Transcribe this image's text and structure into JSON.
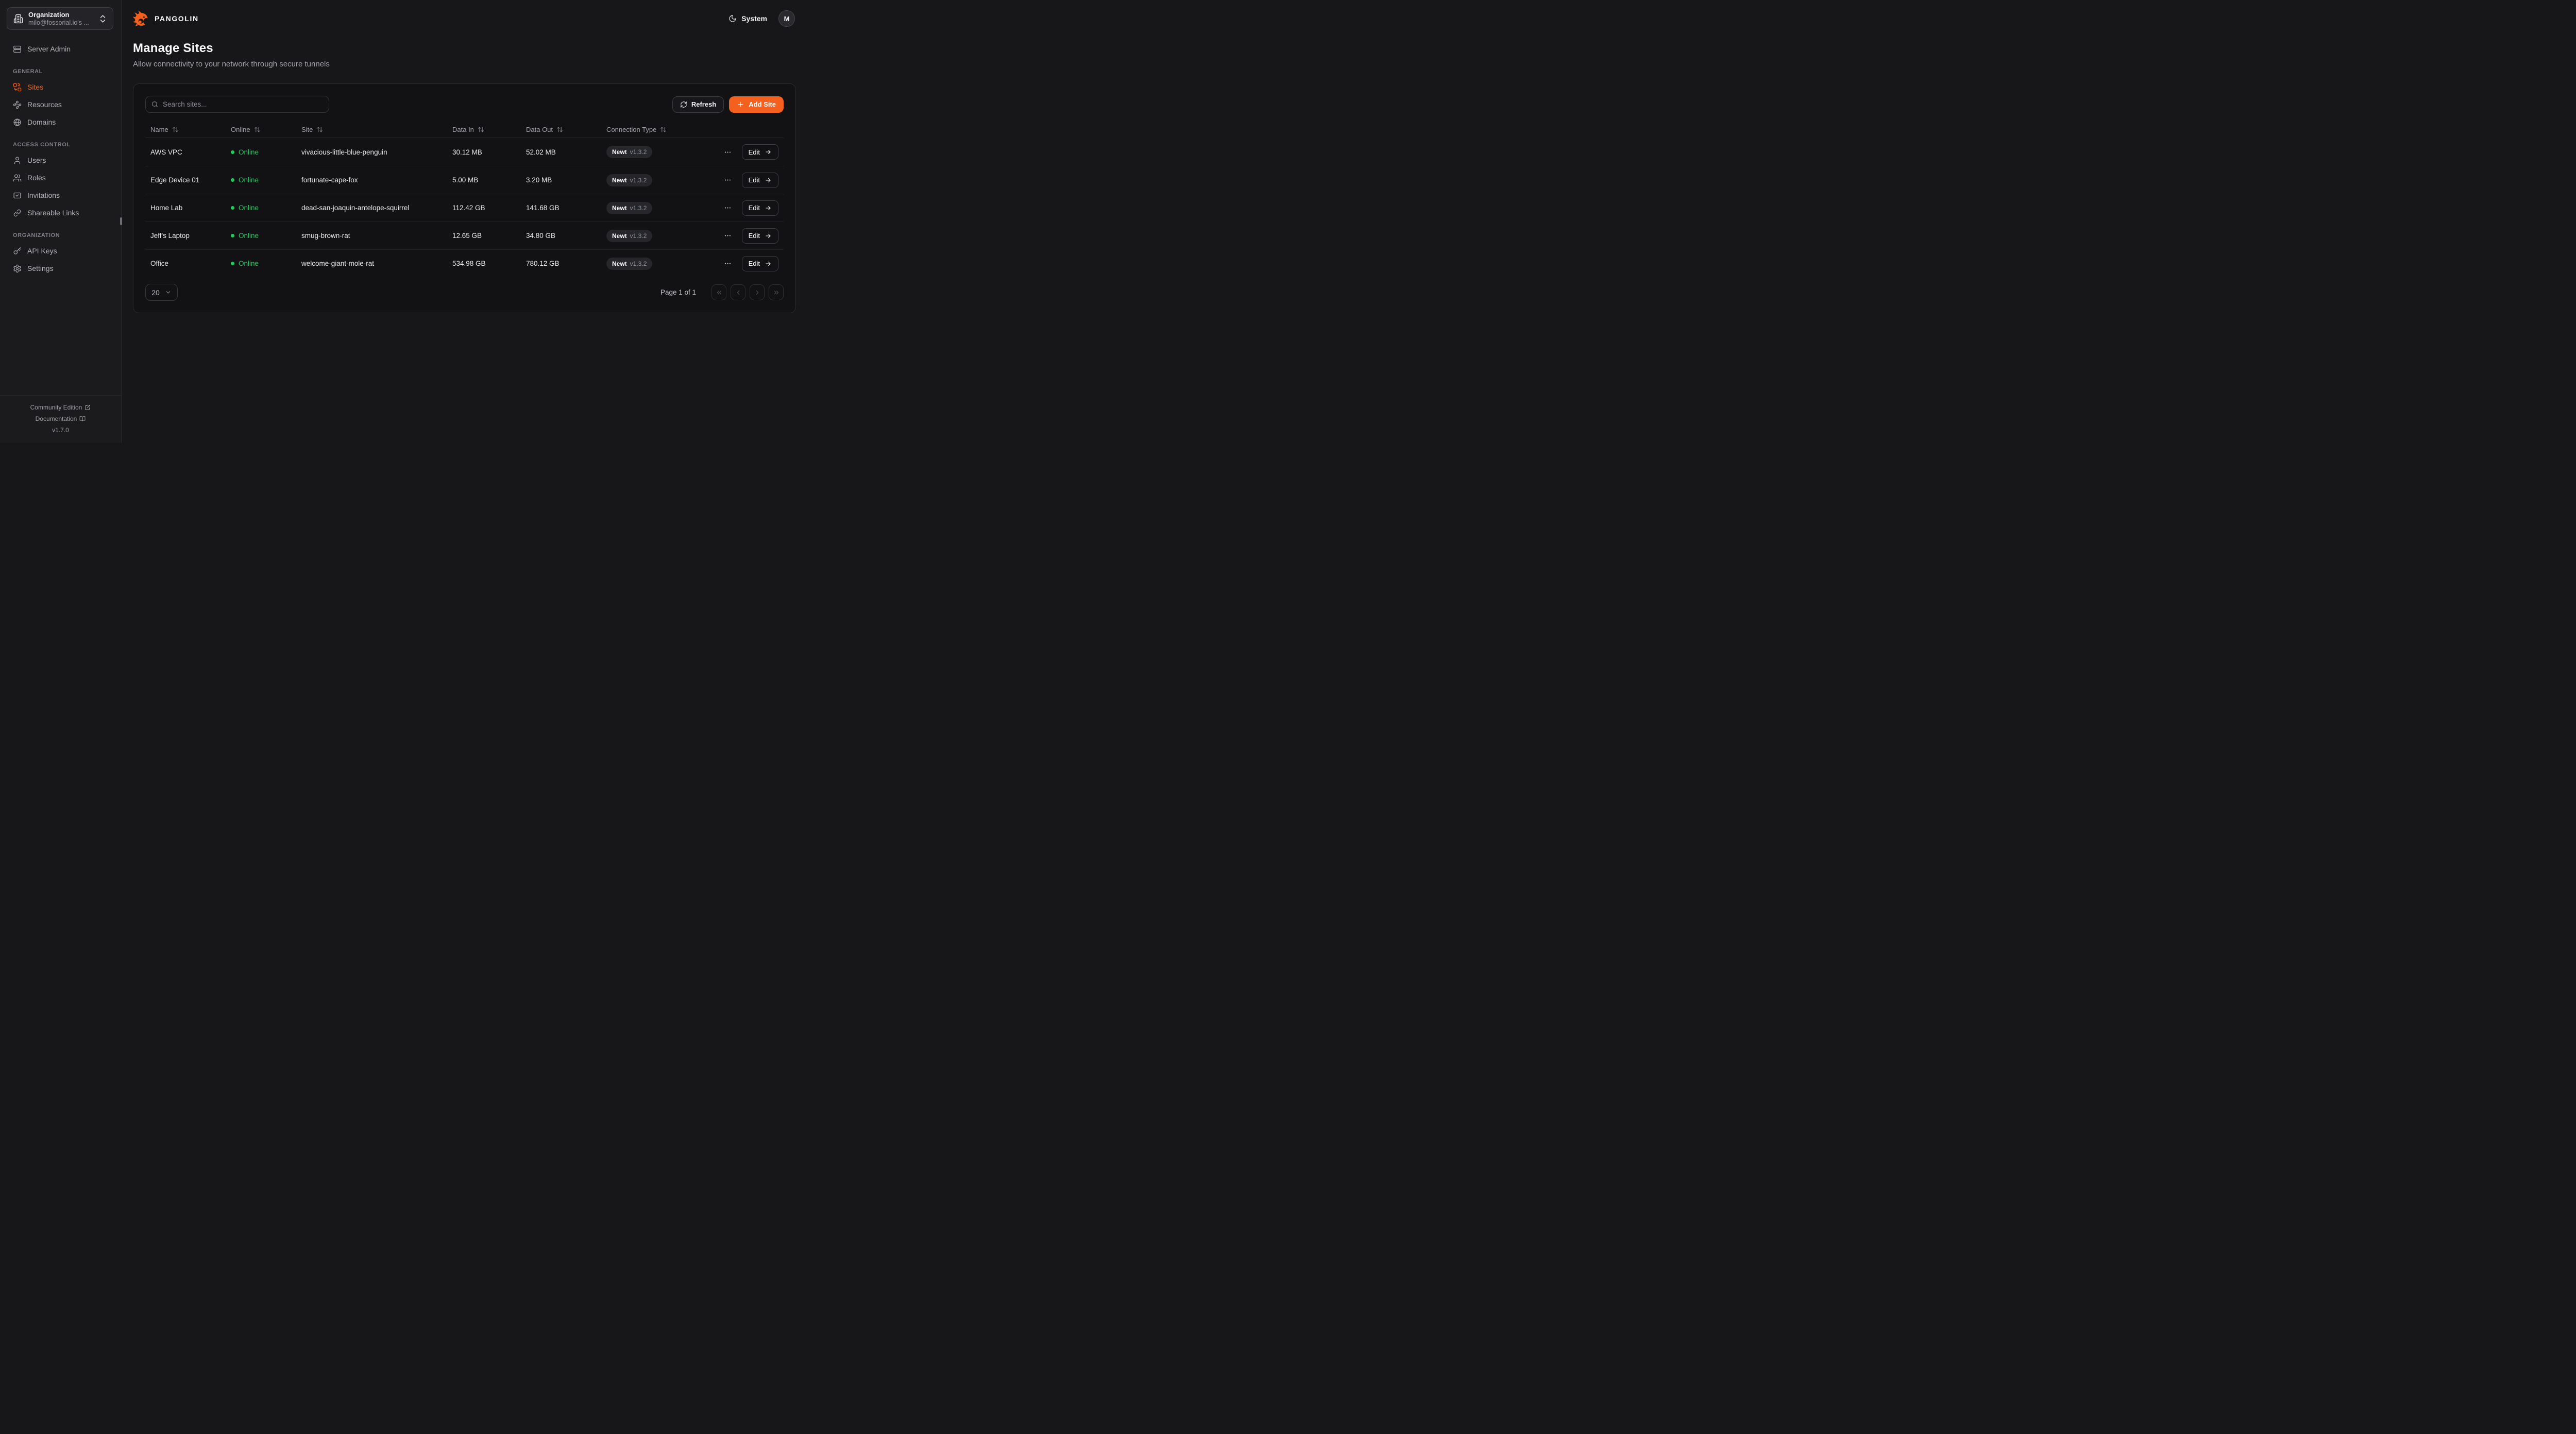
{
  "colors": {
    "accent": "#F4611E",
    "online_green": "#26C95F"
  },
  "brand": {
    "name": "PANGOLIN",
    "logo_icon": "pangolin-logo"
  },
  "topbar": {
    "theme_toggle": {
      "label": "System",
      "icon": "moon-icon"
    },
    "user_menu": {
      "initial": "M"
    }
  },
  "sidebar": {
    "org_switcher": {
      "title": "Organization",
      "subtitle": "milo@fossorial.io's ...",
      "icon": "building-icon",
      "control_icon": "chevrons-up-down-icon"
    },
    "server_admin": {
      "label": "Server Admin",
      "icon": "server-icon"
    },
    "sections": [
      {
        "heading": "GENERAL",
        "items": [
          {
            "label": "Sites",
            "icon": "combine-icon",
            "active": true
          },
          {
            "label": "Resources",
            "icon": "waypoints-icon",
            "active": false
          },
          {
            "label": "Domains",
            "icon": "globe-icon",
            "active": false
          }
        ]
      },
      {
        "heading": "ACCESS CONTROL",
        "items": [
          {
            "label": "Users",
            "icon": "user-icon",
            "active": false
          },
          {
            "label": "Roles",
            "icon": "users-icon",
            "active": false
          },
          {
            "label": "Invitations",
            "icon": "mail-check-icon",
            "active": false
          },
          {
            "label": "Shareable Links",
            "icon": "link-icon",
            "active": false
          }
        ]
      },
      {
        "heading": "ORGANIZATION",
        "items": [
          {
            "label": "API Keys",
            "icon": "key-icon",
            "active": false
          },
          {
            "label": "Settings",
            "icon": "gear-icon",
            "active": false
          }
        ]
      }
    ],
    "footer": {
      "links": [
        {
          "label": "Community Edition",
          "icon": "external-link-icon"
        },
        {
          "label": "Documentation",
          "icon": "book-open-icon"
        }
      ],
      "version": "v1.7.0"
    }
  },
  "page": {
    "title": "Manage Sites",
    "subtitle": "Allow connectivity to your network through secure tunnels"
  },
  "toolbar": {
    "search_placeholder": "Search sites...",
    "refresh_label": "Refresh",
    "refresh_icon": "refresh-icon",
    "add_site_label": "Add Site",
    "add_site_icon": "plus-icon"
  },
  "table": {
    "columns": [
      {
        "label": "Name",
        "sortable": true
      },
      {
        "label": "Online",
        "sortable": true
      },
      {
        "label": "Site",
        "sortable": true
      },
      {
        "label": "Data In",
        "sortable": true
      },
      {
        "label": "Data Out",
        "sortable": true
      },
      {
        "label": "Connection Type",
        "sortable": true
      }
    ],
    "rows": [
      {
        "name": "AWS VPC",
        "status": "Online",
        "site": "vivacious-little-blue-penguin",
        "data_in": "30.12 MB",
        "data_out": "52.02 MB",
        "connection": {
          "type": "Newt",
          "version": "v1.3.2"
        }
      },
      {
        "name": "Edge Device 01",
        "status": "Online",
        "site": "fortunate-cape-fox",
        "data_in": "5.00 MB",
        "data_out": "3.20 MB",
        "connection": {
          "type": "Newt",
          "version": "v1.3.2"
        }
      },
      {
        "name": "Home Lab",
        "status": "Online",
        "site": "dead-san-joaquin-antelope-squirrel",
        "data_in": "112.42 GB",
        "data_out": "141.68 GB",
        "connection": {
          "type": "Newt",
          "version": "v1.3.2"
        }
      },
      {
        "name": "Jeff's Laptop",
        "status": "Online",
        "site": "smug-brown-rat",
        "data_in": "12.65 GB",
        "data_out": "34.80 GB",
        "connection": {
          "type": "Newt",
          "version": "v1.3.2"
        }
      },
      {
        "name": "Office",
        "status": "Online",
        "site": "welcome-giant-mole-rat",
        "data_in": "534.98 GB",
        "data_out": "780.12 GB",
        "connection": {
          "type": "Newt",
          "version": "v1.3.2"
        }
      }
    ],
    "row_action_label": "Edit",
    "row_menu_icon": "ellipsis-icon"
  },
  "pagination": {
    "page_size": "20",
    "status": "Page 1 of 1",
    "buttons": [
      "chevrons-left-icon",
      "chevron-left-icon",
      "chevron-right-icon",
      "chevrons-right-icon"
    ]
  }
}
